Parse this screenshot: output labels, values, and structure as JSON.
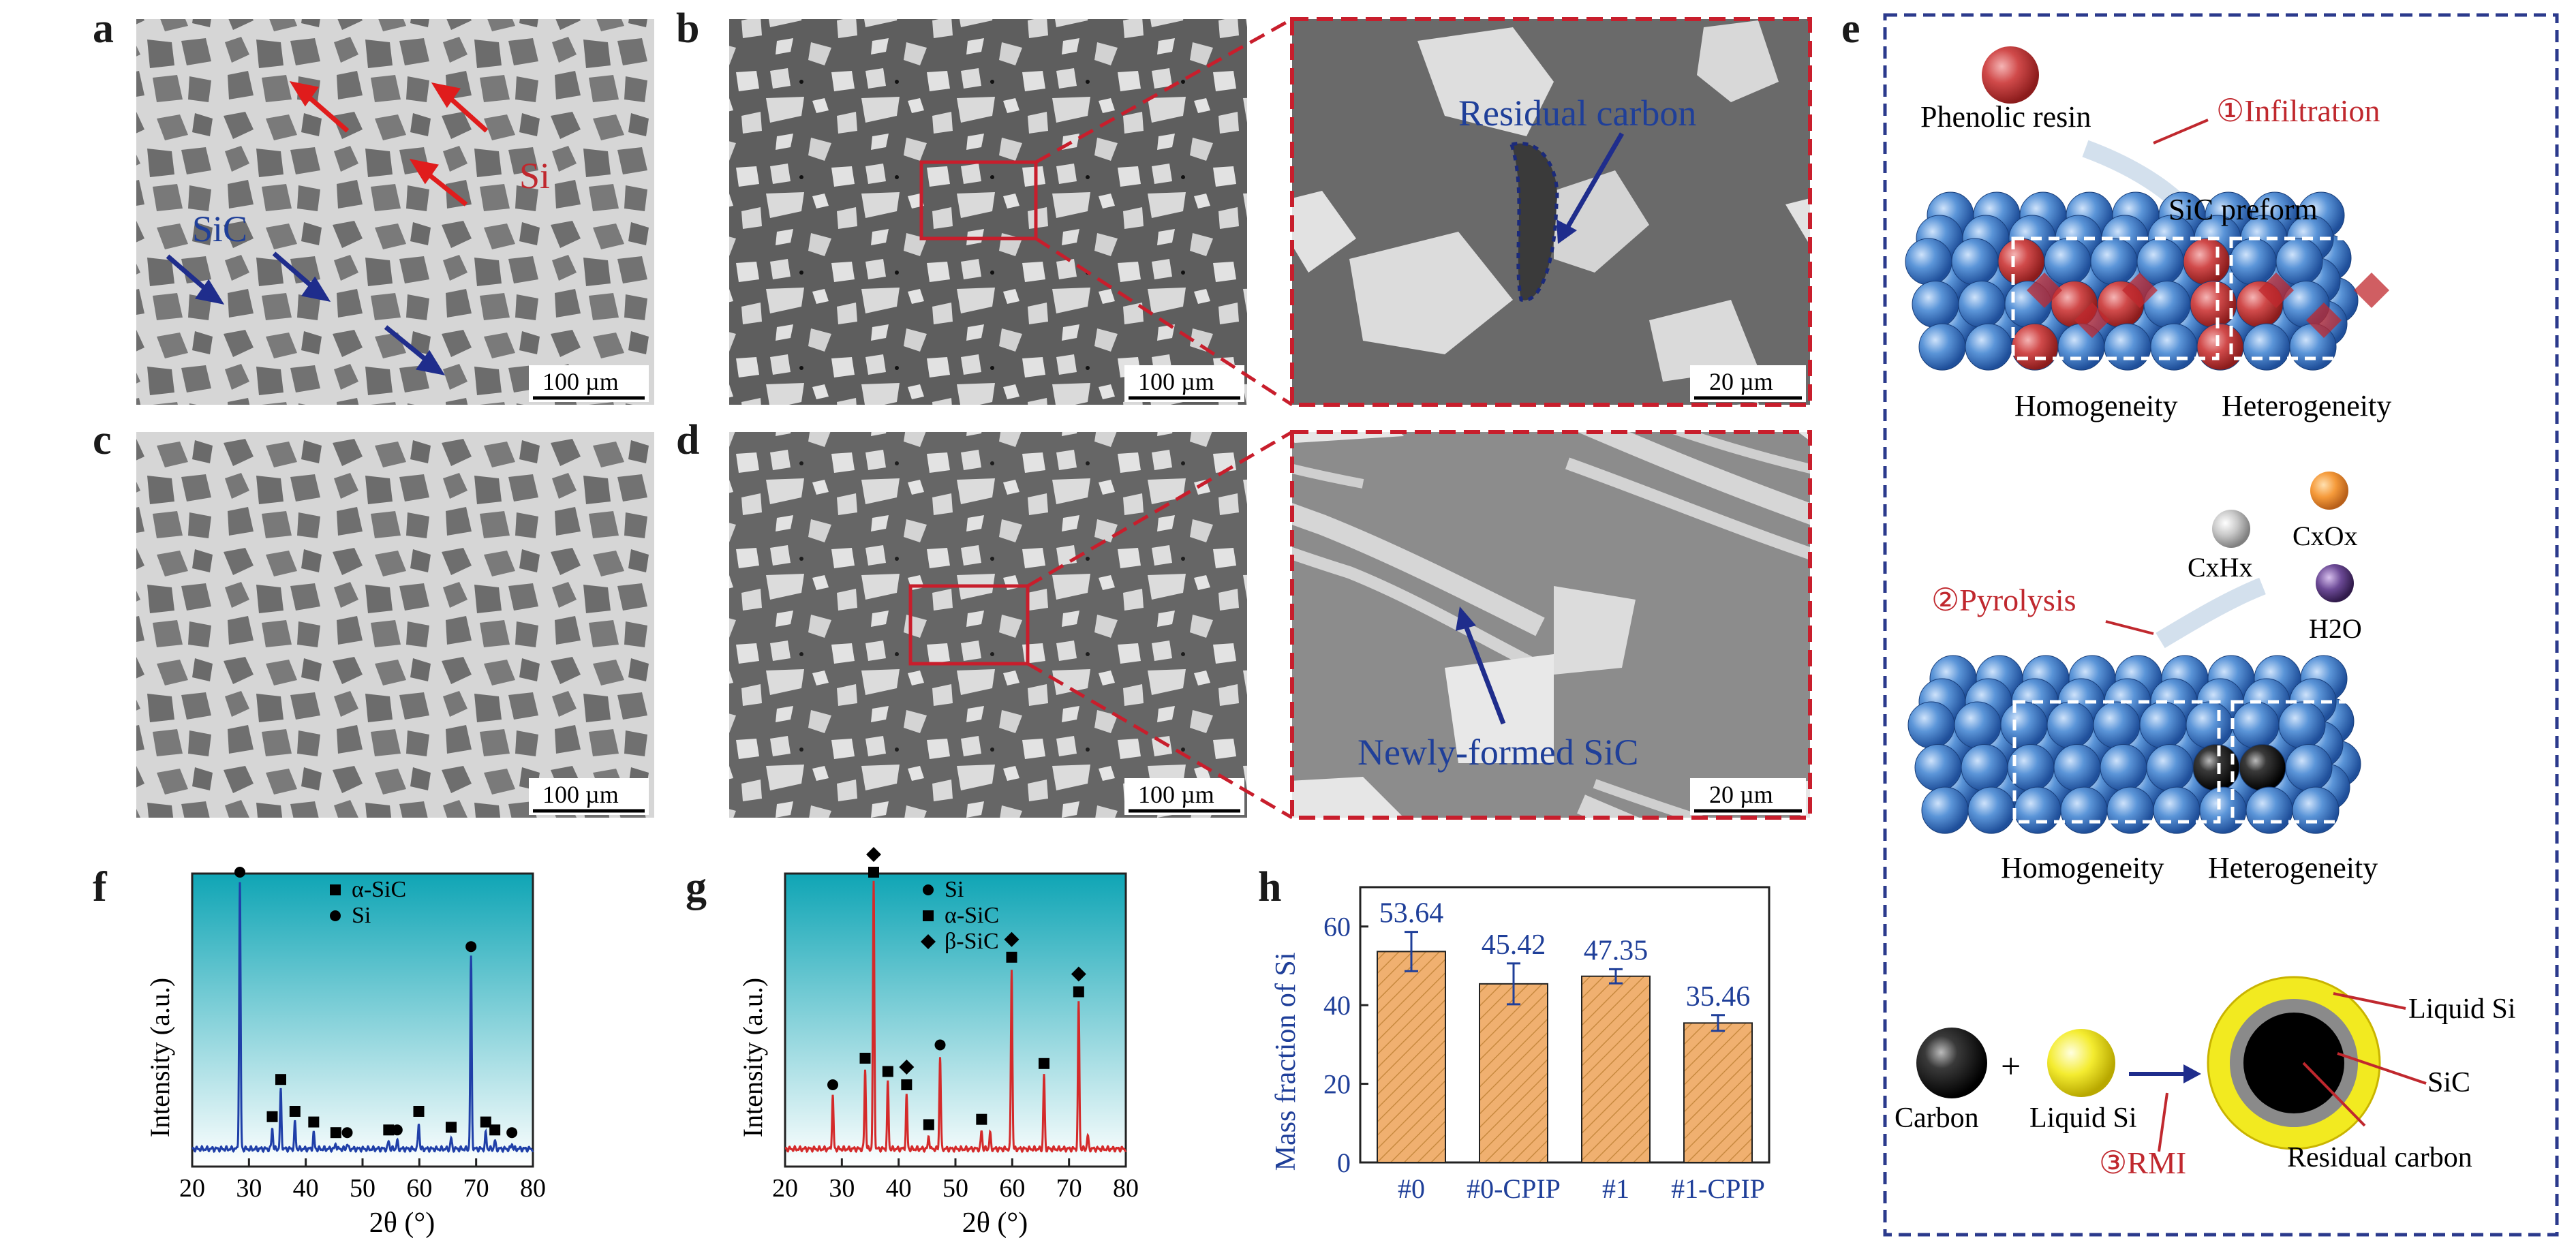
{
  "panels": {
    "a": {
      "letter": "a",
      "labels": {
        "si": "Si",
        "sic": "SiC"
      },
      "scale": "100 µm"
    },
    "b": {
      "letter": "b",
      "scale": "100 µm",
      "zoom_scale": "20 µm",
      "annotation": "Residual carbon"
    },
    "c": {
      "letter": "c",
      "scale": "100 µm"
    },
    "d": {
      "letter": "d",
      "scale": "100 µm",
      "zoom_scale": "20 µm",
      "annotation": "Newly-formed SiC"
    },
    "e": {
      "letter": "e",
      "step1": "①Infiltration",
      "phenolic": "Phenolic resin",
      "preform": "SiC preform",
      "homog": "Homogeneity",
      "heterog": "Heterogeneity",
      "step2": "②Pyrolysis",
      "gas1": "CxHx",
      "gas2": "CxOx",
      "gas3": "H2O",
      "carbon": "Carbon",
      "liquid_si": "Liquid Si",
      "plus": "+",
      "step3": "③RMI",
      "ring_liquid": "Liquid Si",
      "ring_sic": "SiC",
      "ring_carbon": "Residual carbon",
      "colors": {
        "frame": "#2b3a8c",
        "sphere": "#3a78c2",
        "resin": "#c0282e",
        "liquid_si": "#f0e020"
      }
    },
    "f": {
      "letter": "f",
      "legend": [
        "α-SiC",
        "Si"
      ]
    },
    "g": {
      "letter": "g",
      "legend": [
        "Si",
        "α-SiC",
        "β-SiC"
      ]
    },
    "h": {
      "letter": "h"
    }
  },
  "chart_data": [
    {
      "type": "line",
      "panel": "f",
      "xlabel": "2θ (°)",
      "ylabel": "Intensity (a.u.)",
      "xlim": [
        20,
        80
      ],
      "x_ticks": [
        "20",
        "30",
        "40",
        "50",
        "60",
        "70",
        "80"
      ],
      "series": [
        {
          "color": "#1f3fa8",
          "peaks": [
            [
              28.4,
              1.0
            ],
            [
              34.1,
              0.08
            ],
            [
              35.6,
              0.22
            ],
            [
              38.1,
              0.1
            ],
            [
              41.4,
              0.06
            ],
            [
              45.3,
              0.02
            ],
            [
              47.3,
              0.02
            ],
            [
              54.6,
              0.03
            ],
            [
              56.1,
              0.03
            ],
            [
              59.9,
              0.1
            ],
            [
              65.6,
              0.04
            ],
            [
              69.1,
              0.72
            ],
            [
              71.7,
              0.06
            ],
            [
              73.3,
              0.03
            ],
            [
              76.3,
              0.02
            ]
          ]
        }
      ],
      "legend": [
        {
          "label": "α-SiC",
          "marker": "square"
        },
        {
          "label": "Si",
          "marker": "circle"
        }
      ],
      "markers": {
        "circle": [
          28.4,
          47.3,
          56.1,
          69.1,
          76.3
        ],
        "square": [
          34.1,
          35.6,
          38.1,
          41.4,
          45.3,
          54.6,
          59.9,
          65.6,
          71.7,
          73.3
        ]
      }
    },
    {
      "type": "line",
      "panel": "g",
      "xlabel": "2θ (°)",
      "ylabel": "Intensity (a.u.)",
      "xlim": [
        20,
        80
      ],
      "x_ticks": [
        "20",
        "30",
        "40",
        "50",
        "60",
        "70",
        "80"
      ],
      "series": [
        {
          "color": "#d42a2a",
          "peaks": [
            [
              28.4,
              0.2
            ],
            [
              34.1,
              0.3
            ],
            [
              35.6,
              1.0
            ],
            [
              38.1,
              0.25
            ],
            [
              41.4,
              0.2
            ],
            [
              45.3,
              0.05
            ],
            [
              47.3,
              0.35
            ],
            [
              54.6,
              0.07
            ],
            [
              56.1,
              0.06
            ],
            [
              59.9,
              0.68
            ],
            [
              65.6,
              0.28
            ],
            [
              71.7,
              0.55
            ],
            [
              73.3,
              0.05
            ]
          ]
        }
      ],
      "legend": [
        {
          "label": "Si",
          "marker": "circle"
        },
        {
          "label": "α-SiC",
          "marker": "square"
        },
        {
          "label": "β-SiC",
          "marker": "diamond"
        }
      ],
      "markers": {
        "circle": [
          28.4,
          47.3
        ],
        "square": [
          34.1,
          35.6,
          38.1,
          41.4,
          45.3,
          54.6,
          59.9,
          65.6,
          71.7
        ],
        "diamond": [
          35.6,
          41.4,
          59.9,
          71.7
        ]
      }
    },
    {
      "type": "bar",
      "panel": "h",
      "ylabel": "Mass fraction of Si",
      "categories": [
        "#0",
        "#0-CPIP",
        "#1",
        "#1-CPIP"
      ],
      "values": [
        53.64,
        45.42,
        47.35,
        35.46
      ],
      "errors": [
        5.0,
        5.2,
        1.8,
        2.0
      ],
      "value_labels": [
        "53.64",
        "45.42",
        "47.35",
        "35.46"
      ],
      "y_ticks": [
        "0",
        "20",
        "40",
        "60"
      ],
      "ylim": [
        0,
        70
      ],
      "color": "#f0b070"
    }
  ]
}
